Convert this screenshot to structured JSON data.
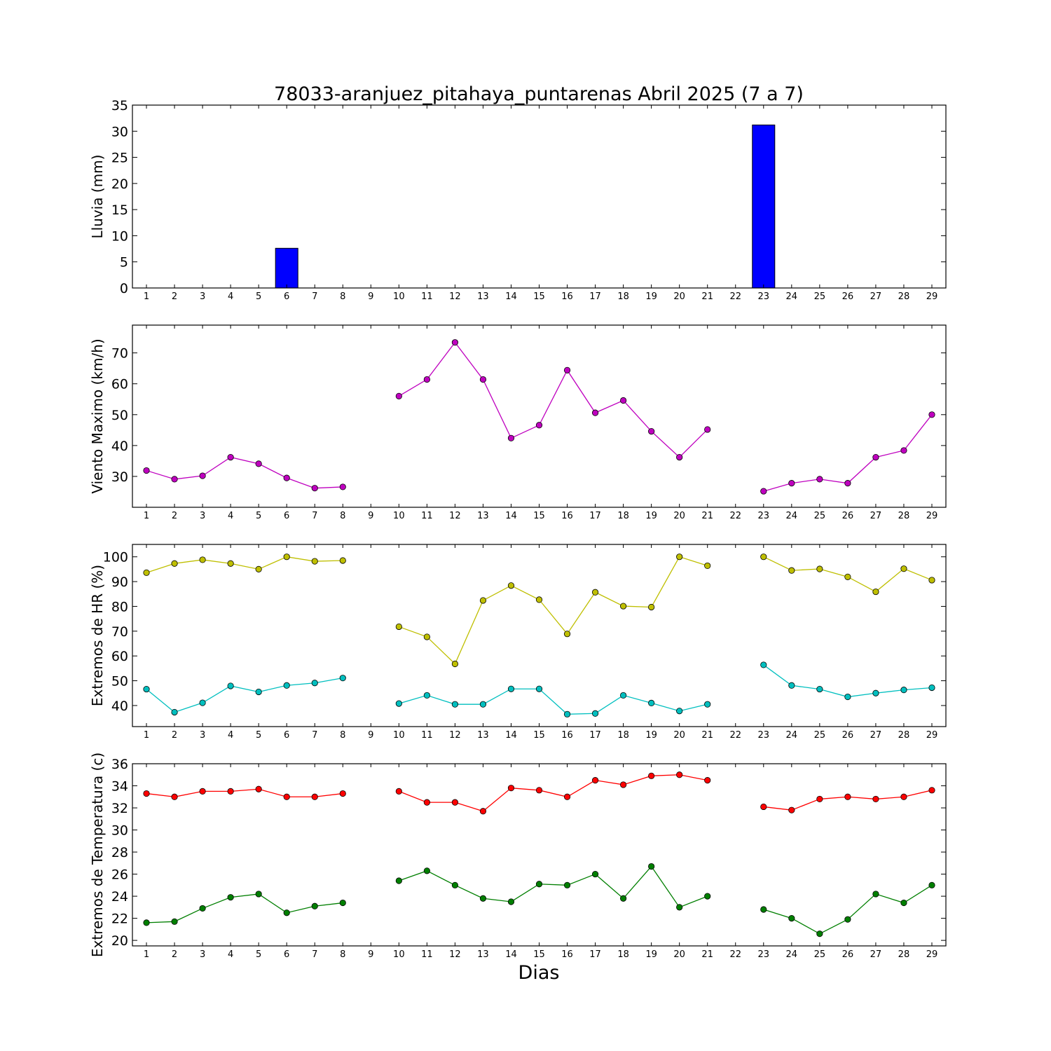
{
  "chart_data": [
    {
      "type": "bar",
      "title": "78033-aranjuez_pitahaya_puntarenas Abril 2025  (7 a 7)",
      "ylabel": "Lluvia (mm)",
      "xlabel": "",
      "ylim": [
        0,
        35
      ],
      "yticks": [
        0,
        5,
        10,
        15,
        20,
        25,
        30,
        35
      ],
      "x": [
        1,
        2,
        3,
        4,
        5,
        6,
        7,
        8,
        9,
        10,
        11,
        12,
        13,
        14,
        15,
        16,
        17,
        18,
        19,
        20,
        21,
        22,
        23,
        24,
        25,
        26,
        27,
        28,
        29
      ],
      "series": [
        {
          "color": "#0000ff",
          "values": [
            0,
            0,
            0,
            0,
            0,
            7.6,
            0,
            0,
            0,
            0,
            0,
            0,
            0,
            0,
            0,
            0,
            0,
            0,
            0,
            0,
            0,
            null,
            31.2,
            0,
            0,
            0,
            0,
            0,
            0
          ]
        }
      ]
    },
    {
      "type": "line",
      "title": "",
      "ylabel": "Viento Maximo (km/h)",
      "xlabel": "",
      "ylim": [
        20,
        79
      ],
      "yticks": [
        30,
        40,
        50,
        60,
        70
      ],
      "x": [
        1,
        2,
        3,
        4,
        5,
        6,
        7,
        8,
        9,
        10,
        11,
        12,
        13,
        14,
        15,
        16,
        17,
        18,
        19,
        20,
        21,
        22,
        23,
        24,
        25,
        26,
        27,
        28,
        29
      ],
      "series": [
        {
          "color": "#bf00bf",
          "values": [
            31.9,
            29.1,
            30.2,
            36.2,
            34.1,
            29.5,
            26.2,
            26.6,
            null,
            56.0,
            61.4,
            73.4,
            61.4,
            42.4,
            46.6,
            64.4,
            50.6,
            54.6,
            44.6,
            36.2,
            45.2,
            null,
            25.2,
            27.8,
            29.1,
            27.8,
            36.2,
            38.4,
            50.0
          ]
        }
      ]
    },
    {
      "type": "line",
      "title": "",
      "ylabel": "Extremos de HR (%)",
      "xlabel": "",
      "ylim": [
        31.5,
        105
      ],
      "yticks": [
        40,
        50,
        60,
        70,
        80,
        90,
        100
      ],
      "x": [
        1,
        2,
        3,
        4,
        5,
        6,
        7,
        8,
        9,
        10,
        11,
        12,
        13,
        14,
        15,
        16,
        17,
        18,
        19,
        20,
        21,
        22,
        23,
        24,
        25,
        26,
        27,
        28,
        29
      ],
      "series": [
        {
          "color": "#bfbf00",
          "values": [
            93.6,
            97.3,
            98.8,
            97.3,
            95.0,
            100,
            98.2,
            98.5,
            null,
            71.8,
            67.7,
            56.8,
            82.4,
            88.4,
            82.7,
            68.9,
            85.7,
            80.1,
            79.7,
            100,
            96.4,
            null,
            100,
            94.5,
            95.1,
            91.9,
            85.9,
            95.2,
            90.6
          ]
        },
        {
          "color": "#00bfbf",
          "values": [
            46.6,
            37.3,
            41.1,
            47.9,
            45.5,
            48.1,
            49.1,
            51.1,
            null,
            40.8,
            44.1,
            40.5,
            40.5,
            46.7,
            46.7,
            36.5,
            36.8,
            44.1,
            41.0,
            37.8,
            40.5,
            null,
            56.4,
            48.1,
            46.6,
            43.5,
            45.0,
            46.3,
            47.2
          ]
        }
      ]
    },
    {
      "type": "line",
      "title": "",
      "ylabel": "Extremos de Temperatura (c)",
      "xlabel": "Dias",
      "ylim": [
        19.5,
        36
      ],
      "yticks": [
        20,
        22,
        24,
        26,
        28,
        30,
        32,
        34,
        36
      ],
      "x": [
        1,
        2,
        3,
        4,
        5,
        6,
        7,
        8,
        9,
        10,
        11,
        12,
        13,
        14,
        15,
        16,
        17,
        18,
        19,
        20,
        21,
        22,
        23,
        24,
        25,
        26,
        27,
        28,
        29
      ],
      "series": [
        {
          "color": "#ff0000",
          "values": [
            33.3,
            33.0,
            33.5,
            33.5,
            33.7,
            33.0,
            33.0,
            33.3,
            null,
            33.5,
            32.5,
            32.5,
            31.7,
            33.8,
            33.6,
            33.0,
            34.5,
            34.1,
            34.9,
            35.0,
            34.5,
            null,
            32.1,
            31.8,
            32.8,
            33.0,
            32.8,
            33.0,
            33.6
          ]
        },
        {
          "color": "#007f00",
          "values": [
            21.6,
            21.7,
            22.9,
            23.9,
            24.2,
            22.5,
            23.1,
            23.4,
            null,
            25.4,
            26.3,
            25.0,
            23.8,
            23.5,
            25.1,
            25.0,
            26.0,
            23.8,
            26.7,
            23.0,
            24.0,
            null,
            22.8,
            22.0,
            20.6,
            21.9,
            24.2,
            23.4,
            25.0
          ]
        }
      ]
    }
  ]
}
